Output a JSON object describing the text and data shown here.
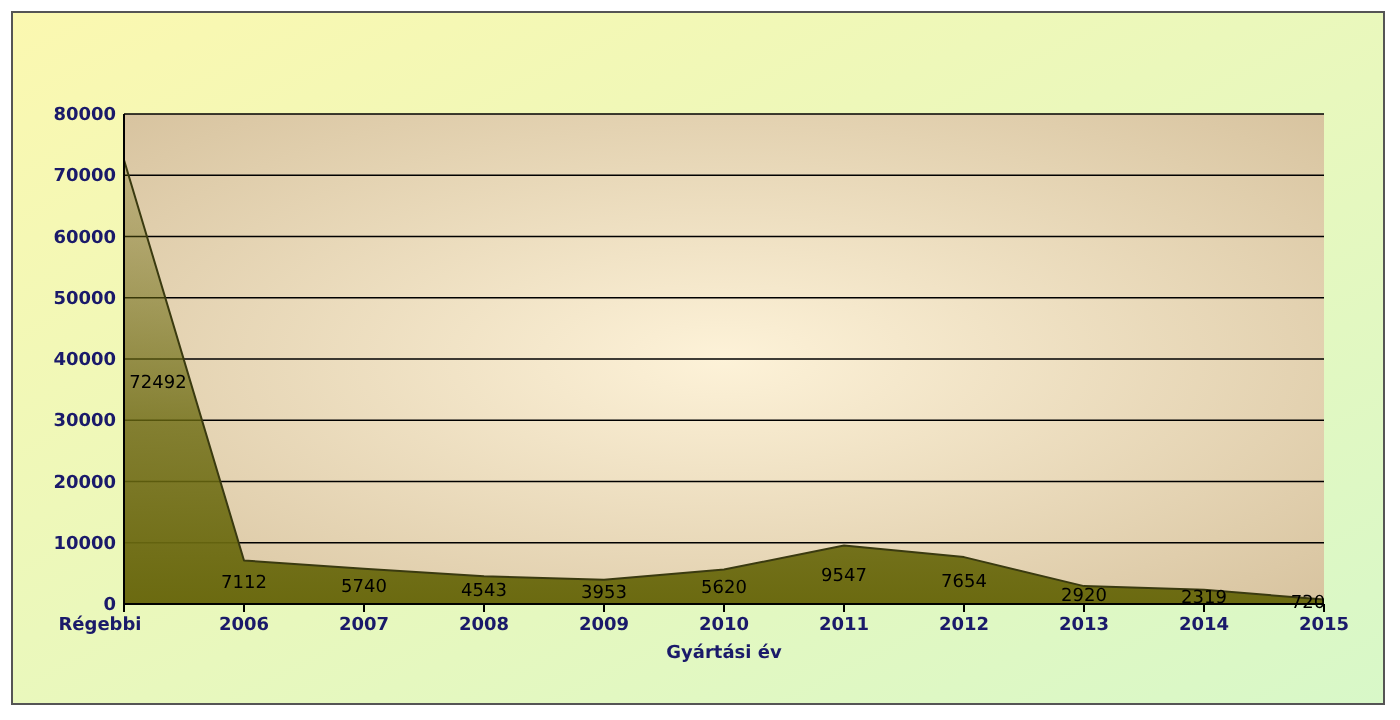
{
  "chart_data": {
    "type": "area",
    "xlabel": "Gyártási év",
    "categories": [
      "Régebbi",
      "2006",
      "2007",
      "2008",
      "2009",
      "2010",
      "2011",
      "2012",
      "2013",
      "2014",
      "2015"
    ],
    "series": [
      {
        "color": "#6b6a10",
        "values": [
          72492,
          7112,
          5740,
          4543,
          3953,
          5620,
          9547,
          7654,
          2920,
          2319,
          720
        ]
      }
    ],
    "ylim": [
      0,
      80000
    ],
    "yticks": [
      0,
      10000,
      20000,
      30000,
      40000,
      50000,
      60000,
      70000,
      80000
    ],
    "grid": "y",
    "value_labels": [
      "72492",
      "7112",
      "5740",
      "4543",
      "3953",
      "5620",
      "9547",
      "7654",
      "2920",
      "2319",
      "720"
    ]
  }
}
